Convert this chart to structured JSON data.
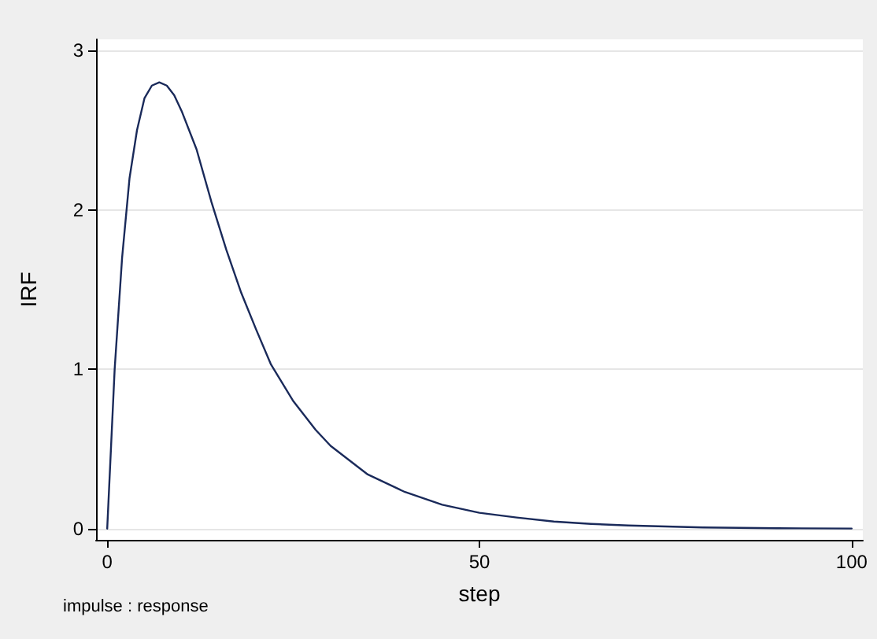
{
  "chart_data": {
    "type": "line",
    "xlabel": "step",
    "ylabel": "IRF",
    "annotations": [
      "impulse : response"
    ],
    "x": [
      0,
      1,
      2,
      3,
      4,
      5,
      6,
      7,
      8,
      9,
      10,
      12,
      14,
      16,
      18,
      20,
      22,
      25,
      28,
      30,
      35,
      40,
      45,
      50,
      55,
      60,
      65,
      70,
      80,
      90,
      100
    ],
    "series": [
      {
        "color": "#1a2a5a",
        "values": [
          0,
          1.0,
          1.7,
          2.2,
          2.5,
          2.7,
          2.78,
          2.8,
          2.78,
          2.72,
          2.62,
          2.38,
          2.05,
          1.75,
          1.48,
          1.25,
          1.03,
          0.8,
          0.62,
          0.52,
          0.34,
          0.23,
          0.15,
          0.1,
          0.07,
          0.045,
          0.03,
          0.02,
          0.008,
          0.003,
          0.001
        ]
      }
    ],
    "xlim": [
      -1.5,
      101.5
    ],
    "xticks": [
      0,
      50,
      100
    ],
    "ylim": [
      -0.07,
      3.07
    ],
    "yticks": [
      0,
      1,
      2,
      3
    ],
    "grid": "y",
    "marker": "none",
    "line_style": "solid"
  }
}
